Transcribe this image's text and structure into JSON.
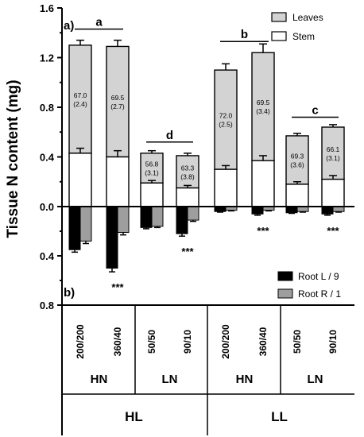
{
  "chart_data": {
    "type": "bar",
    "stacked": true,
    "ylabel": "Tissue N content (mg)",
    "panels": {
      "top": "a)",
      "bottom": "b)"
    },
    "y_ticks_top": [
      "0.0",
      "0.4",
      "0.8",
      "1.2",
      "1.6"
    ],
    "y_ticks_bottom": [
      "0.4",
      "0.8"
    ],
    "ylim_top": [
      0,
      1.6
    ],
    "ylim_bottom": [
      0,
      0.8
    ],
    "categories": [
      "200/200",
      "360/40",
      "50/50",
      "90/10",
      "200/200",
      "360/40",
      "50/50",
      "90/10"
    ],
    "nitrogen_groups": [
      {
        "label": "HN",
        "span": [
          0,
          1
        ]
      },
      {
        "label": "LN",
        "span": [
          2,
          3
        ]
      },
      {
        "label": "HN",
        "span": [
          4,
          5
        ]
      },
      {
        "label": "LN",
        "span": [
          6,
          7
        ]
      }
    ],
    "light_groups": [
      {
        "label": "HL",
        "span": [
          0,
          3
        ]
      },
      {
        "label": "LL",
        "span": [
          4,
          7
        ]
      }
    ],
    "series_top": [
      {
        "name": "Leaves",
        "color": "#d3d3d3"
      },
      {
        "name": "Stem",
        "color": "#ffffff"
      }
    ],
    "stem": [
      0.43,
      0.4,
      0.19,
      0.15,
      0.3,
      0.37,
      0.18,
      0.22
    ],
    "stem_err": [
      0.04,
      0.05,
      0.02,
      0.02,
      0.03,
      0.04,
      0.02,
      0.03
    ],
    "total": [
      1.3,
      1.29,
      0.43,
      0.41,
      1.1,
      1.24,
      0.57,
      0.64
    ],
    "total_err": [
      0.04,
      0.05,
      0.02,
      0.02,
      0.05,
      0.07,
      0.02,
      0.02
    ],
    "leaf_labels": [
      "67.0\n(2.4)",
      "69.5\n(2.7)",
      "56.8\n(3.1)",
      "63.3\n(3.8)",
      "72.0\n(2.5)",
      "69.5\n(3.4)",
      "69.3\n(3.6)",
      "66.1\n(3.1)"
    ],
    "significance_top": [
      {
        "label": "a",
        "bars": [
          0,
          1
        ],
        "y": 1.43
      },
      {
        "label": "d",
        "bars": [
          2,
          3
        ],
        "y": 0.52
      },
      {
        "label": "b",
        "bars": [
          4,
          5
        ],
        "y": 1.33
      },
      {
        "label": "c",
        "bars": [
          6,
          7
        ],
        "y": 0.72
      }
    ],
    "series_bottom": [
      {
        "name": "Root L / 9",
        "color": "#000000"
      },
      {
        "name": "Root R / 1",
        "color": "#9e9e9e"
      }
    ],
    "root_L": [
      0.35,
      0.5,
      0.17,
      0.22,
      0.04,
      0.06,
      0.05,
      0.06
    ],
    "root_L_err": [
      0.02,
      0.03,
      0.01,
      0.02,
      0.005,
      0.01,
      0.005,
      0.01
    ],
    "root_R": [
      0.28,
      0.21,
      0.16,
      0.11,
      0.03,
      0.03,
      0.04,
      0.04
    ],
    "root_R_err": [
      0.02,
      0.02,
      0.01,
      0.01,
      0.005,
      0.005,
      0.005,
      0.005
    ],
    "significance_bottom": [
      "",
      "***",
      "",
      "***",
      "",
      "***",
      "",
      "***"
    ]
  }
}
